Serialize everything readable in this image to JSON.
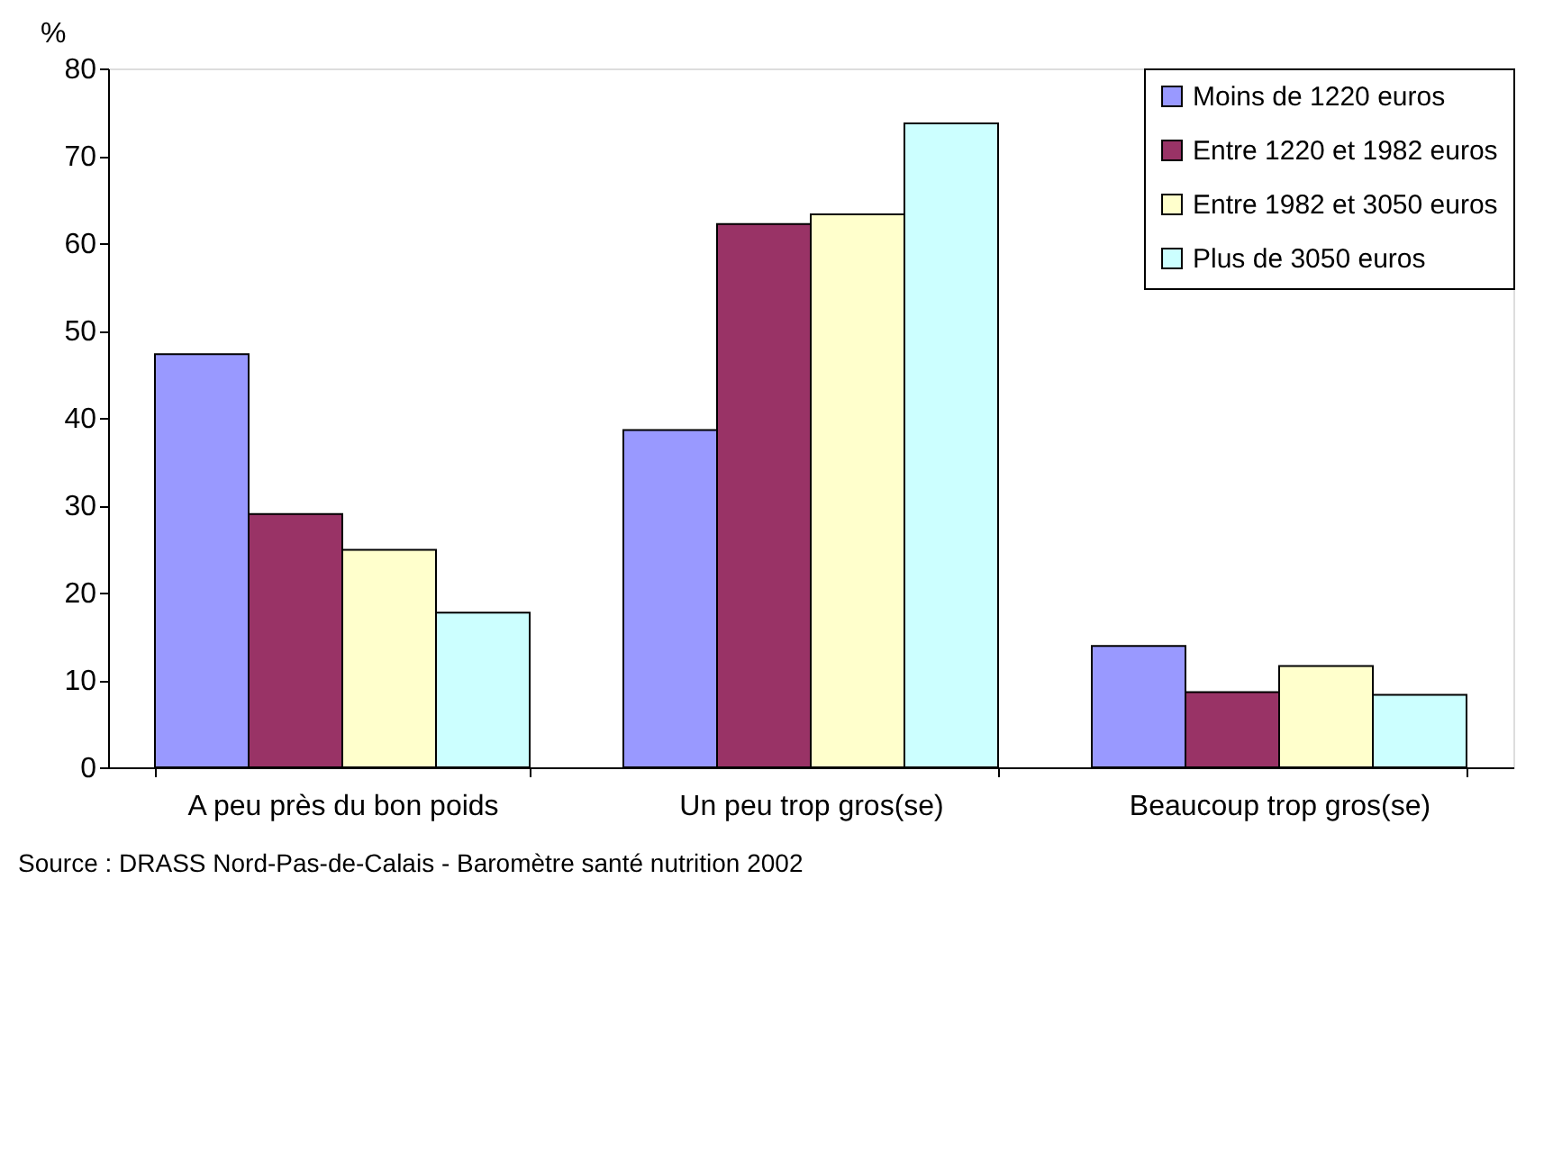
{
  "chart_data": {
    "type": "bar",
    "ylabel": "%",
    "categories": [
      "A peu près du bon poids",
      "Un peu trop gros(se)",
      "Beaucoup trop gros(se)"
    ],
    "series": [
      {
        "name": "Moins de 1220 euros",
        "color": "#9999ff",
        "values": [
          47.3,
          38.6,
          13.9
        ]
      },
      {
        "name": "Entre 1220 et 1982 euros",
        "color": "#993366",
        "values": [
          29.0,
          62.2,
          8.6
        ]
      },
      {
        "name": "Entre 1982 et 3050 euros",
        "color": "#ffffcc",
        "values": [
          24.9,
          63.3,
          11.6
        ]
      },
      {
        "name": "Plus de 3050 euros",
        "color": "#ccffff",
        "values": [
          17.7,
          73.7,
          8.3
        ]
      }
    ],
    "ylim": [
      0,
      80
    ],
    "yticks": [
      0,
      10,
      20,
      30,
      40,
      50,
      60,
      70,
      80
    ],
    "grid": false,
    "legend": "top right",
    "annotations": [
      "Source : DRASS Nord-Pas-de-Calais - Baromètre santé nutrition 2002"
    ]
  }
}
